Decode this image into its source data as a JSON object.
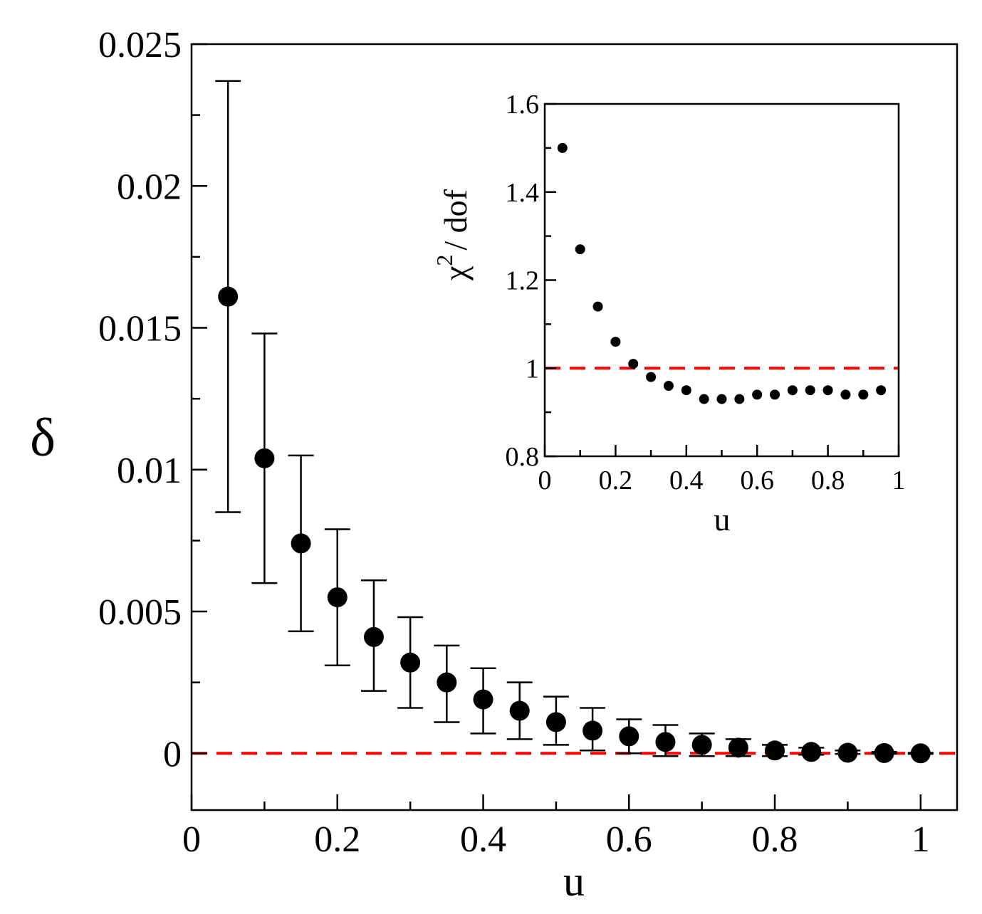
{
  "chart_data": [
    {
      "type": "scatter",
      "name": "main",
      "xlabel": "u",
      "ylabel": "δ",
      "xlim": [
        0,
        1.05
      ],
      "ylim": [
        -0.002,
        0.025
      ],
      "xticks": [
        0,
        0.2,
        0.4,
        0.6,
        0.8,
        1
      ],
      "xtick_labels": [
        "0",
        "0.2",
        "0.4",
        "0.6",
        "0.8",
        "1"
      ],
      "yticks": [
        0,
        0.005,
        0.01,
        0.015,
        0.02,
        0.025
      ],
      "ytick_labels": [
        "0",
        "0.005",
        "0.01",
        "0.015",
        "0.02",
        "0.025"
      ],
      "series": [
        {
          "name": "delta",
          "color": "#000000",
          "x": [
            0.05,
            0.1,
            0.15,
            0.2,
            0.25,
            0.3,
            0.35,
            0.4,
            0.45,
            0.5,
            0.55,
            0.6,
            0.65,
            0.7,
            0.75,
            0.8,
            0.85,
            0.9,
            0.95,
            1.0
          ],
          "y": [
            0.0161,
            0.0104,
            0.0074,
            0.0055,
            0.0041,
            0.0032,
            0.0025,
            0.0019,
            0.0015,
            0.0011,
            0.0008,
            0.0006,
            0.0004,
            0.0003,
            0.0002,
            0.0001,
            5e-05,
            2e-05,
            1e-05,
            0.0
          ],
          "err_upper": [
            0.0237,
            0.0148,
            0.0105,
            0.0079,
            0.0061,
            0.0048,
            0.0038,
            0.003,
            0.0025,
            0.002,
            0.0016,
            0.0012,
            0.001,
            0.0007,
            0.0005,
            0.0003,
            0.0002,
            0.0001,
            5e-05,
            2e-05
          ],
          "err_lower": [
            0.0085,
            0.006,
            0.0043,
            0.0031,
            0.0022,
            0.0016,
            0.0011,
            0.0007,
            0.0005,
            0.0003,
            0.0001,
            0.0,
            -0.0001,
            -0.0001,
            -0.0001,
            -0.0001,
            -5e-05,
            -2e-05,
            -1e-05,
            -2e-05
          ]
        }
      ],
      "reference_line": {
        "y": 0,
        "color": "#ff0000",
        "style": "dashed"
      }
    },
    {
      "type": "scatter",
      "name": "inset",
      "xlabel": "u",
      "ylabel": "χ² / dof",
      "ylabel_parts": {
        "symbol": "χ",
        "superscript": "2",
        "suffix": "/ dof"
      },
      "xlim": [
        0,
        1
      ],
      "ylim": [
        0.8,
        1.6
      ],
      "xticks": [
        0,
        0.2,
        0.4,
        0.6,
        0.8,
        1
      ],
      "xtick_labels": [
        "0",
        "0.2",
        "0.4",
        "0.6",
        "0.8",
        "1"
      ],
      "yticks": [
        0.8,
        1,
        1.2,
        1.4,
        1.6
      ],
      "ytick_labels": [
        "0.8",
        "1",
        "1.2",
        "1.4",
        "1.6"
      ],
      "series": [
        {
          "name": "chi2_per_dof",
          "color": "#000000",
          "x": [
            0.05,
            0.1,
            0.15,
            0.2,
            0.25,
            0.3,
            0.35,
            0.4,
            0.45,
            0.5,
            0.55,
            0.6,
            0.65,
            0.7,
            0.75,
            0.8,
            0.85,
            0.9,
            0.95
          ],
          "y": [
            1.5,
            1.27,
            1.14,
            1.06,
            1.01,
            0.98,
            0.96,
            0.95,
            0.93,
            0.93,
            0.93,
            0.94,
            0.94,
            0.95,
            0.95,
            0.95,
            0.94,
            0.94,
            0.95
          ]
        }
      ],
      "reference_line": {
        "y": 1,
        "color": "#ff0000",
        "style": "dashed"
      }
    }
  ]
}
